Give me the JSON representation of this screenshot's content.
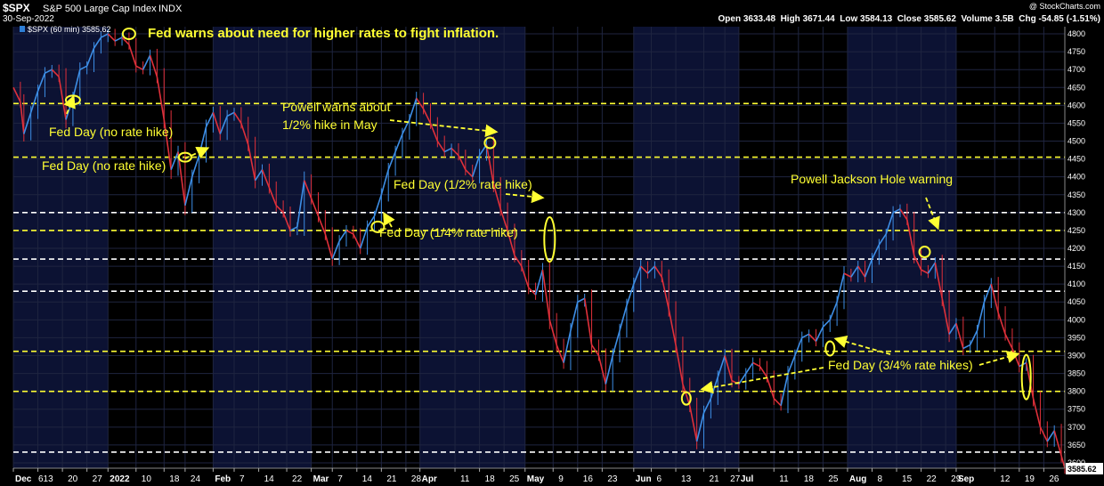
{
  "header": {
    "symbol": "$SPX",
    "name": "S&P 500 Large Cap Index",
    "exchange": "INDX",
    "date": "30-Sep-2022",
    "watermark": "@ StockCharts.com",
    "ohlc_label": "Open 3633.48  High 3671.44  Low 3584.13  Close 3585.62  Volume 3.5B  Chg -54.85 (-1.51%)",
    "legend_label": "$SPX (60 min) 3585.62"
  },
  "chart_data": {
    "type": "line",
    "title": "",
    "ylim": [
      3585,
      4820
    ],
    "y_ticks": [
      3600,
      3650,
      3700,
      3750,
      3800,
      3850,
      3900,
      3950,
      4000,
      4050,
      4100,
      4150,
      4200,
      4250,
      4300,
      4350,
      4400,
      4450,
      4500,
      4550,
      4600,
      4650,
      4700,
      4750,
      4800
    ],
    "last_price_label": "3585.62",
    "x_tick_labels": [
      {
        "label": "Dec",
        "day": 0,
        "bold": true
      },
      {
        "label": "6",
        "day": 0
      },
      {
        "label": "13",
        "day": 7
      },
      {
        "label": "20",
        "day": 14
      },
      {
        "label": "27",
        "day": 21
      },
      {
        "label": "2022",
        "day": 27,
        "bold": true
      },
      {
        "label": "10",
        "day": 35
      },
      {
        "label": "18",
        "day": 43
      },
      {
        "label": "24",
        "day": 49
      },
      {
        "label": "Feb",
        "day": 57,
        "bold": true
      },
      {
        "label": "7",
        "day": 63
      },
      {
        "label": "14",
        "day": 70
      },
      {
        "label": "22",
        "day": 78
      },
      {
        "label": "Mar",
        "day": 85,
        "bold": true
      },
      {
        "label": "7",
        "day": 91
      },
      {
        "label": "14",
        "day": 98
      },
      {
        "label": "21",
        "day": 105
      },
      {
        "label": "28",
        "day": 112
      },
      {
        "label": "Apr",
        "day": 116,
        "bold": true
      },
      {
        "label": "11",
        "day": 126
      },
      {
        "label": "18",
        "day": 133
      },
      {
        "label": "25",
        "day": 140
      },
      {
        "label": "May",
        "day": 146,
        "bold": true
      },
      {
        "label": "9",
        "day": 154
      },
      {
        "label": "16",
        "day": 161
      },
      {
        "label": "23",
        "day": 168
      },
      {
        "label": "Jun",
        "day": 177,
        "bold": true
      },
      {
        "label": "6",
        "day": 182
      },
      {
        "label": "13",
        "day": 189
      },
      {
        "label": "21",
        "day": 197
      },
      {
        "label": "27",
        "day": 203
      },
      {
        "label": "Jul",
        "day": 207,
        "bold": true
      },
      {
        "label": "11",
        "day": 217
      },
      {
        "label": "18",
        "day": 224
      },
      {
        "label": "25",
        "day": 231
      },
      {
        "label": "Aug",
        "day": 238,
        "bold": true
      },
      {
        "label": "8",
        "day": 245
      },
      {
        "label": "15",
        "day": 252
      },
      {
        "label": "22",
        "day": 259
      },
      {
        "label": "29",
        "day": 266
      },
      {
        "label": "Sep",
        "day": 269,
        "bold": true
      },
      {
        "label": "12",
        "day": 280
      },
      {
        "label": "19",
        "day": 287
      },
      {
        "label": "26",
        "day": 294
      }
    ],
    "month_shading": [
      {
        "start_day": 0,
        "end_day": 27
      },
      {
        "start_day": 57,
        "end_day": 85
      },
      {
        "start_day": 116,
        "end_day": 146
      },
      {
        "start_day": 177,
        "end_day": 207
      },
      {
        "start_day": 238,
        "end_day": 269
      }
    ],
    "horizontal_levels": [
      {
        "value": 4605,
        "color": "#ffff33"
      },
      {
        "value": 4455,
        "color": "#ffff33"
      },
      {
        "value": 4300,
        "color": "#ffffff"
      },
      {
        "value": 4250,
        "color": "#ffff33"
      },
      {
        "value": 4170,
        "color": "#ffffff"
      },
      {
        "value": 4080,
        "color": "#ffffff"
      },
      {
        "value": 3912,
        "color": "#ffff33"
      },
      {
        "value": 3800,
        "color": "#ffff33"
      },
      {
        "value": 3630,
        "color": "#ffffff"
      }
    ],
    "series": [
      {
        "points": [
          [
            0,
            4650
          ],
          [
            2,
            4610
          ],
          [
            3,
            4520
          ],
          [
            5,
            4580
          ],
          [
            7,
            4640
          ],
          [
            9,
            4690
          ],
          [
            11,
            4700
          ],
          [
            13,
            4680
          ],
          [
            15,
            4560
          ],
          [
            17,
            4620
          ],
          [
            19,
            4700
          ],
          [
            21,
            4710
          ],
          [
            23,
            4760
          ],
          [
            25,
            4790
          ],
          [
            27,
            4800
          ],
          [
            29,
            4780
          ],
          [
            31,
            4790
          ],
          [
            33,
            4770
          ],
          [
            35,
            4710
          ],
          [
            37,
            4700
          ],
          [
            39,
            4740
          ],
          [
            41,
            4680
          ],
          [
            43,
            4560
          ],
          [
            45,
            4420
          ],
          [
            47,
            4470
          ],
          [
            49,
            4320
          ],
          [
            51,
            4400
          ],
          [
            53,
            4460
          ],
          [
            55,
            4540
          ],
          [
            57,
            4580
          ],
          [
            59,
            4520
          ],
          [
            61,
            4570
          ],
          [
            63,
            4580
          ],
          [
            65,
            4550
          ],
          [
            67,
            4490
          ],
          [
            69,
            4390
          ],
          [
            71,
            4420
          ],
          [
            73,
            4370
          ],
          [
            75,
            4320
          ],
          [
            77,
            4300
          ],
          [
            79,
            4250
          ],
          [
            81,
            4260
          ],
          [
            83,
            4390
          ],
          [
            85,
            4340
          ],
          [
            87,
            4290
          ],
          [
            89,
            4240
          ],
          [
            91,
            4170
          ],
          [
            93,
            4220
          ],
          [
            95,
            4250
          ],
          [
            97,
            4240
          ],
          [
            99,
            4200
          ],
          [
            101,
            4260
          ],
          [
            103,
            4290
          ],
          [
            105,
            4350
          ],
          [
            107,
            4420
          ],
          [
            109,
            4470
          ],
          [
            111,
            4520
          ],
          [
            113,
            4560
          ],
          [
            115,
            4620
          ],
          [
            117,
            4590
          ],
          [
            119,
            4550
          ],
          [
            121,
            4500
          ],
          [
            123,
            4470
          ],
          [
            125,
            4480
          ],
          [
            127,
            4460
          ],
          [
            129,
            4420
          ],
          [
            131,
            4400
          ],
          [
            133,
            4460
          ],
          [
            135,
            4490
          ],
          [
            137,
            4380
          ],
          [
            139,
            4310
          ],
          [
            141,
            4250
          ],
          [
            143,
            4180
          ],
          [
            145,
            4150
          ],
          [
            147,
            4090
          ],
          [
            149,
            4070
          ],
          [
            151,
            4140
          ],
          [
            153,
            4000
          ],
          [
            155,
            3930
          ],
          [
            157,
            3880
          ],
          [
            159,
            3970
          ],
          [
            161,
            4050
          ],
          [
            163,
            4060
          ],
          [
            165,
            3930
          ],
          [
            167,
            3900
          ],
          [
            169,
            3820
          ],
          [
            171,
            3900
          ],
          [
            173,
            3970
          ],
          [
            175,
            4040
          ],
          [
            177,
            4100
          ],
          [
            179,
            4150
          ],
          [
            181,
            4130
          ],
          [
            183,
            4150
          ],
          [
            185,
            4120
          ],
          [
            187,
            4030
          ],
          [
            189,
            3930
          ],
          [
            191,
            3820
          ],
          [
            193,
            3760
          ],
          [
            195,
            3660
          ],
          [
            197,
            3740
          ],
          [
            199,
            3780
          ],
          [
            201,
            3840
          ],
          [
            203,
            3900
          ],
          [
            205,
            3830
          ],
          [
            207,
            3820
          ],
          [
            209,
            3850
          ],
          [
            211,
            3880
          ],
          [
            213,
            3870
          ],
          [
            215,
            3840
          ],
          [
            217,
            3780
          ],
          [
            219,
            3760
          ],
          [
            221,
            3850
          ],
          [
            223,
            3900
          ],
          [
            225,
            3950
          ],
          [
            227,
            3960
          ],
          [
            229,
            3940
          ],
          [
            231,
            3980
          ],
          [
            233,
            4000
          ],
          [
            235,
            4050
          ],
          [
            237,
            4130
          ],
          [
            239,
            4120
          ],
          [
            241,
            4150
          ],
          [
            243,
            4120
          ],
          [
            245,
            4170
          ],
          [
            247,
            4210
          ],
          [
            249,
            4240
          ],
          [
            251,
            4300
          ],
          [
            253,
            4310
          ],
          [
            255,
            4280
          ],
          [
            257,
            4180
          ],
          [
            259,
            4140
          ],
          [
            261,
            4130
          ],
          [
            263,
            4160
          ],
          [
            265,
            4060
          ],
          [
            267,
            3960
          ],
          [
            269,
            3990
          ],
          [
            271,
            3920
          ],
          [
            273,
            3930
          ],
          [
            275,
            3970
          ],
          [
            277,
            4050
          ],
          [
            279,
            4100
          ],
          [
            281,
            4020
          ],
          [
            283,
            3960
          ],
          [
            285,
            3920
          ],
          [
            287,
            3870
          ],
          [
            289,
            3880
          ],
          [
            291,
            3780
          ],
          [
            293,
            3700
          ],
          [
            295,
            3660
          ],
          [
            297,
            3690
          ],
          [
            299,
            3620
          ],
          [
            300,
            3585
          ]
        ]
      }
    ],
    "annotations": [
      {
        "text": "Fed warns about need for higher rates to fight inflation.",
        "day": 33,
        "value": 4800
      },
      {
        "text": "Fed Day (no rate hike)",
        "day": 11,
        "value": 4620
      },
      {
        "text": "Fed Day (no rate hike)",
        "day": 56,
        "value": 4440
      },
      {
        "text": "Powell warns about",
        "day": 140,
        "value": 4500
      },
      {
        "text": "1/2% hike in May",
        "day": 140,
        "value": 4500
      },
      {
        "text": "Fed Day (1/2% rate hike)",
        "day": 148,
        "value": 4200
      },
      {
        "text": "Fed Day (1/4% rate hike)",
        "day": 104,
        "value": 4265
      },
      {
        "text": "Powell Jackson Hole warning",
        "day": 264,
        "value": 4200
      },
      {
        "text": "Fed Day (3/4% rate hikes)",
        "day": 193,
        "value": 3790
      }
    ]
  }
}
